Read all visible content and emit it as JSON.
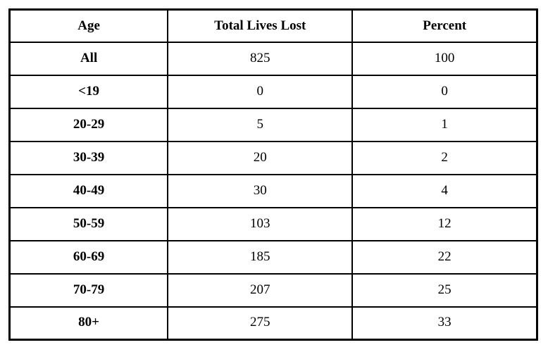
{
  "table": {
    "columns": [
      "Age",
      "Total Lives Lost",
      "Percent"
    ],
    "rows": [
      [
        "All",
        "825",
        "100"
      ],
      [
        "<19",
        "0",
        "0"
      ],
      [
        "20-29",
        "5",
        "1"
      ],
      [
        "30-39",
        "20",
        "2"
      ],
      [
        "40-49",
        "30",
        "4"
      ],
      [
        "50-59",
        "103",
        "12"
      ],
      [
        "60-69",
        "185",
        "22"
      ],
      [
        "70-79",
        "207",
        "25"
      ],
      [
        "80+",
        "275",
        "33"
      ]
    ],
    "border_color": "#000000",
    "column_width_percents": [
      30,
      35,
      35
    ]
  },
  "chart_data": {
    "type": "table",
    "title": "",
    "columns": [
      "Age",
      "Total Lives Lost",
      "Percent"
    ],
    "categories": [
      "All",
      "<19",
      "20-29",
      "30-39",
      "40-49",
      "50-59",
      "60-69",
      "70-79",
      "80+"
    ],
    "series": [
      {
        "name": "Total Lives Lost",
        "values": [
          825,
          0,
          5,
          20,
          30,
          103,
          185,
          207,
          275
        ]
      },
      {
        "name": "Percent",
        "values": [
          100,
          0,
          1,
          2,
          4,
          12,
          22,
          25,
          33
        ]
      }
    ]
  }
}
